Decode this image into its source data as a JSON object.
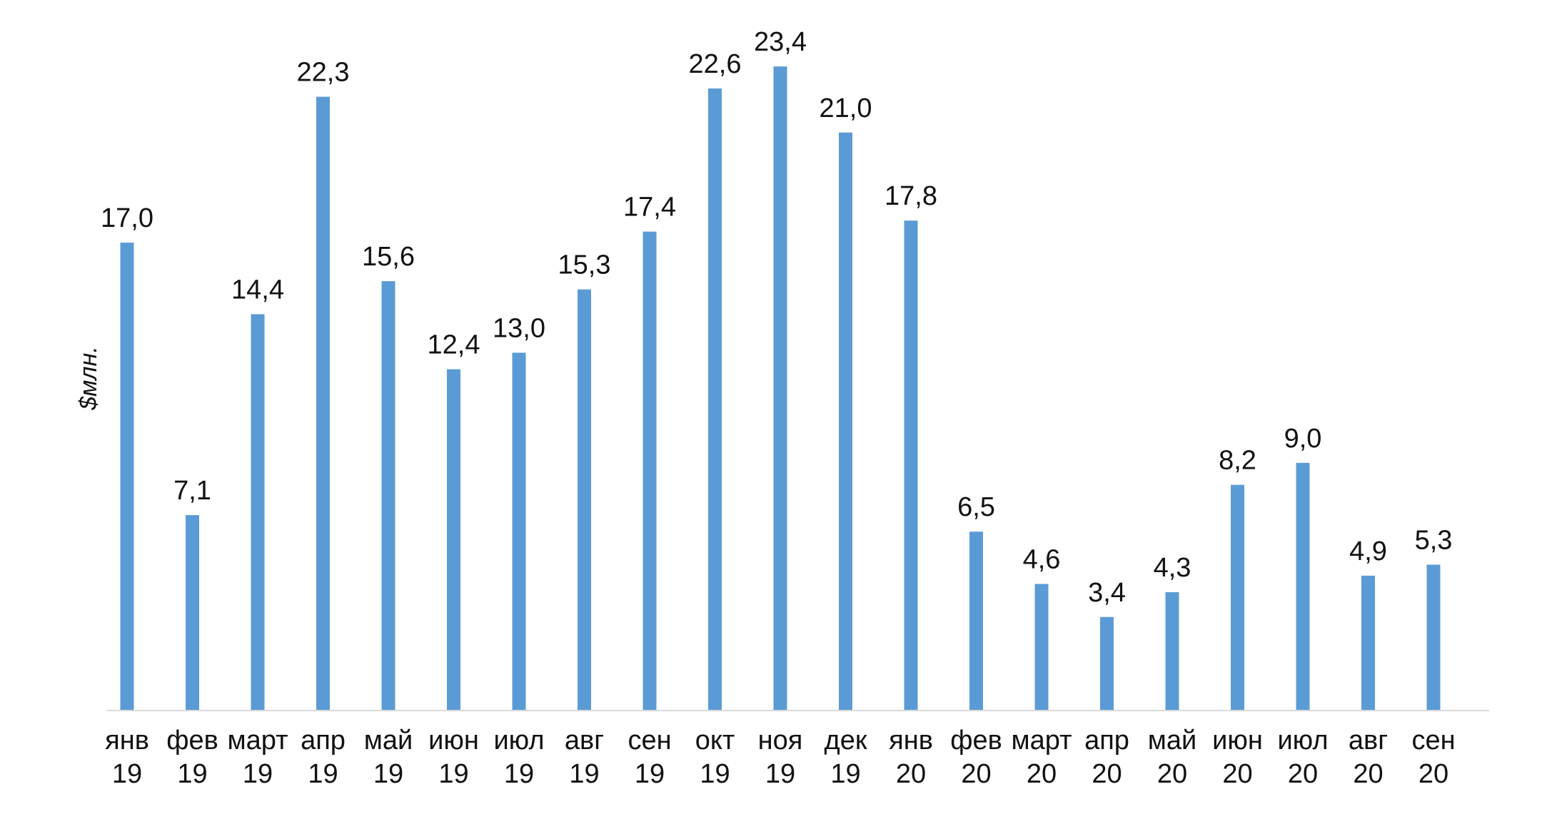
{
  "chart_data": {
    "type": "bar",
    "categories": [
      [
        "янв",
        "19"
      ],
      [
        "фев",
        "19"
      ],
      [
        "март",
        "19"
      ],
      [
        "апр",
        "19"
      ],
      [
        "май",
        "19"
      ],
      [
        "июн",
        "19"
      ],
      [
        "июл",
        "19"
      ],
      [
        "авг",
        "19"
      ],
      [
        "сен",
        "19"
      ],
      [
        "окт",
        "19"
      ],
      [
        "ноя",
        "19"
      ],
      [
        "дек",
        "19"
      ],
      [
        "янв",
        "20"
      ],
      [
        "фев",
        "20"
      ],
      [
        "март",
        "20"
      ],
      [
        "апр",
        "20"
      ],
      [
        "май",
        "20"
      ],
      [
        "июн",
        "20"
      ],
      [
        "июл",
        "20"
      ],
      [
        "авг",
        "20"
      ],
      [
        "сен",
        "20"
      ]
    ],
    "values": [
      17.0,
      7.1,
      14.4,
      22.3,
      15.6,
      12.4,
      13.0,
      15.3,
      17.4,
      22.6,
      23.4,
      21.0,
      17.8,
      6.5,
      4.6,
      3.4,
      4.3,
      8.2,
      9.0,
      4.9,
      5.3
    ],
    "data_labels": [
      "17,0",
      "7,1",
      "14,4",
      "22,3",
      "15,6",
      "12,4",
      "13,0",
      "15,3",
      "17,4",
      "22,6",
      "23,4",
      "21,0",
      "17,8",
      "6,5",
      "4,6",
      "3,4",
      "4,3",
      "8,2",
      "9,0",
      "4,9",
      "5,3"
    ],
    "ylabel": "$млн.",
    "ylim": [
      0,
      24
    ],
    "bar_color": "#5b9bd5",
    "axis_color": "#d9d9d9",
    "grid": false,
    "legend": "none"
  }
}
